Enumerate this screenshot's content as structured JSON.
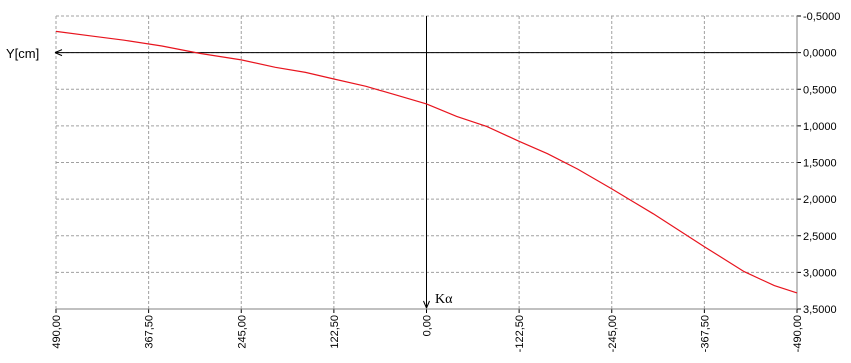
{
  "chart_data": {
    "type": "line",
    "ylabel": "Y[cm]",
    "xlabel": "Kα",
    "x_ticks": [
      "490,00",
      "367,50",
      "245,00",
      "122,50",
      "0,00",
      "-122,50",
      "-245,00",
      "-367,50",
      "-490,00"
    ],
    "y_ticks": [
      "-0,5000",
      "0,0000",
      "0,5000",
      "1,0000",
      "1,5000",
      "2,0000",
      "2,5000",
      "3,0000",
      "3,5000"
    ],
    "xlim": [
      490,
      -490
    ],
    "ylim": [
      -0.5,
      3.5
    ],
    "y_inverted": true,
    "grid": true,
    "series": [
      {
        "color": "#e8141e",
        "x": [
          490,
          445,
          400,
          350,
          300,
          245,
          200,
          160,
          122.5,
          80,
          40,
          0,
          -40,
          -80,
          -122.5,
          -160,
          -200,
          -245,
          -300,
          -367.5,
          -420,
          -460,
          -490
        ],
        "values": [
          -0.29,
          -0.23,
          -0.17,
          -0.09,
          0.01,
          0.1,
          0.2,
          0.27,
          0.36,
          0.46,
          0.58,
          0.7,
          0.87,
          1.01,
          1.21,
          1.38,
          1.59,
          1.86,
          2.2,
          2.65,
          2.99,
          3.18,
          3.28
        ]
      }
    ]
  },
  "colors": {
    "series": "#e8141e",
    "grid": "#a0a0a0",
    "axis": "#000000"
  }
}
